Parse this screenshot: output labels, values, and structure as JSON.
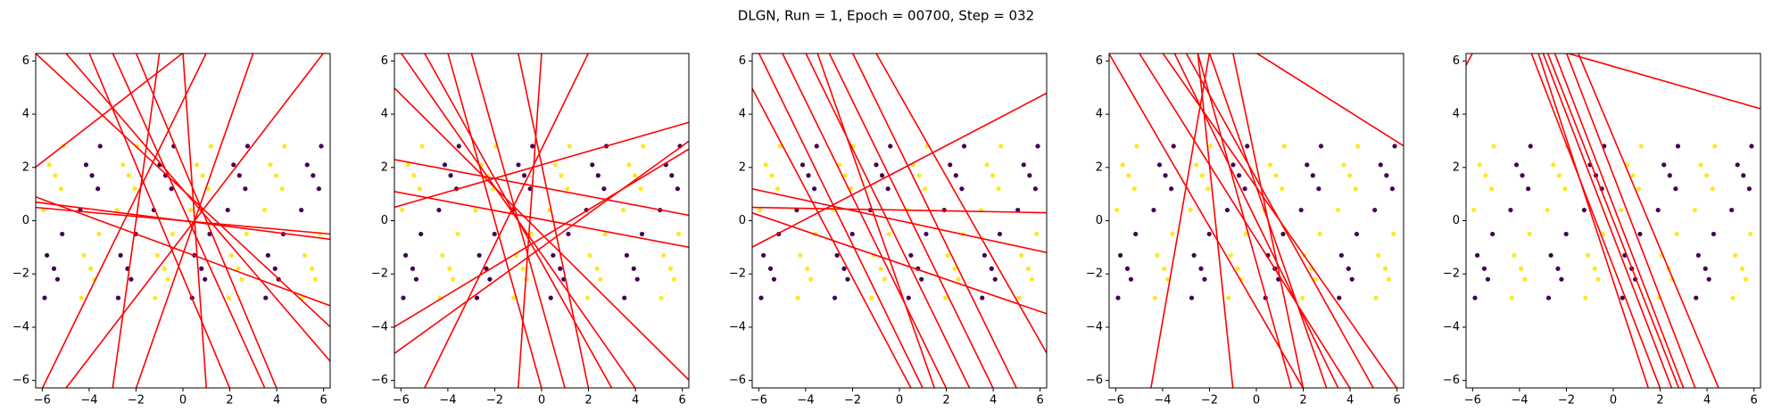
{
  "title": "DLGN, Run = 1, Epoch = 00700, Step = 032",
  "dataset": [
    {
      "color": "#fde725",
      "x": [
        -5.95,
        -5.2,
        -5.7,
        -5.1,
        -5.45,
        -2.81,
        -2.06,
        -2.56,
        -1.96,
        -2.31,
        0.34,
        1.09,
        0.59,
        1.19,
        0.84,
        3.48,
        4.23,
        3.73,
        4.33,
        3.98,
        -3.58,
        -4.23,
        -3.78,
        -4.33,
        -3.93,
        -0.44,
        -1.09,
        -0.64,
        -1.19,
        -0.79,
        2.71,
        2.06,
        2.51,
        1.96,
        2.36,
        5.85,
        5.2,
        5.65,
        5.1,
        5.5
      ],
      "y": [
        0.4,
        1.2,
        2.1,
        2.8,
        1.7,
        0.4,
        1.2,
        2.1,
        2.8,
        1.7,
        0.4,
        1.2,
        2.1,
        2.8,
        1.7,
        0.4,
        1.2,
        2.1,
        2.8,
        1.7,
        -0.5,
        -1.3,
        -2.2,
        -2.9,
        -1.8,
        -0.5,
        -1.3,
        -2.2,
        -2.9,
        -1.8,
        -0.5,
        -1.3,
        -2.2,
        -2.9,
        -1.8,
        -0.5,
        -1.3,
        -2.2,
        -2.9,
        -1.8
      ]
    },
    {
      "color": "#440154",
      "x": [
        -4.38,
        -3.63,
        -4.13,
        -3.53,
        -3.88,
        -1.24,
        -0.49,
        -0.99,
        -0.39,
        -0.74,
        1.91,
        2.66,
        2.16,
        2.76,
        2.41,
        5.05,
        5.8,
        5.3,
        5.9,
        5.55,
        -5.15,
        -5.8,
        -5.35,
        -5.9,
        -5.5,
        -2.01,
        -2.66,
        -2.21,
        -2.76,
        -2.36,
        1.14,
        0.49,
        0.94,
        0.39,
        0.79,
        4.28,
        3.63,
        4.08,
        3.53,
        3.93
      ],
      "y": [
        0.4,
        1.2,
        2.1,
        2.8,
        1.7,
        0.4,
        1.2,
        2.1,
        2.8,
        1.7,
        0.4,
        1.2,
        2.1,
        2.8,
        1.7,
        0.4,
        1.2,
        2.1,
        2.8,
        1.7,
        -0.5,
        -1.3,
        -2.2,
        -2.9,
        -1.8,
        -0.5,
        -1.3,
        -2.2,
        -2.9,
        -1.8,
        -0.5,
        -1.3,
        -2.2,
        -2.9,
        -1.8,
        -0.5,
        -1.3,
        -2.2,
        -2.9,
        -1.8
      ]
    }
  ],
  "chart_data": [
    {
      "type": "scatter",
      "line_color": "#ff0000",
      "xlim": [
        -6.28,
        6.28
      ],
      "ylim": [
        -6.28,
        6.28
      ],
      "xticks": [
        {
          "value": -6,
          "label": "−6"
        },
        {
          "value": -4,
          "label": "−4"
        },
        {
          "value": -2,
          "label": "−2"
        },
        0,
        2,
        4,
        6
      ],
      "yticks": [
        {
          "value": -6,
          "label": "−6"
        },
        {
          "value": -4,
          "label": "−4"
        },
        {
          "value": -2,
          "label": "−2"
        },
        0,
        2,
        4,
        6
      ],
      "lines": [
        {
          "x": [
            -6.3,
            6.3
          ],
          "y": [
            0.9,
            -3.2
          ]
        },
        {
          "x": [
            -6.3,
            6.3
          ],
          "y": [
            0.7,
            -0.7
          ]
        },
        {
          "x": [
            -6.3,
            6.3
          ],
          "y": [
            0.5,
            -0.5
          ]
        },
        {
          "x": [
            -6.3,
            0
          ],
          "y": [
            2,
            6.3
          ]
        },
        {
          "x": [
            -5,
            6.3
          ],
          "y": [
            6.3,
            -5.3
          ]
        },
        {
          "x": [
            -4,
            2
          ],
          "y": [
            6.3,
            -6.3
          ]
        },
        {
          "x": [
            -2,
            4
          ],
          "y": [
            6.3,
            -6.3
          ]
        },
        {
          "x": [
            -1,
            -3
          ],
          "y": [
            6.3,
            -6.3
          ]
        },
        {
          "x": [
            0,
            1
          ],
          "y": [
            6.3,
            -6.3
          ]
        },
        {
          "x": [
            3,
            -2
          ],
          "y": [
            6.3,
            -6.3
          ]
        },
        {
          "x": [
            6,
            -5
          ],
          "y": [
            6.3,
            -6.3
          ]
        },
        {
          "x": [
            -6.3,
            6.3
          ],
          "y": [
            6.3,
            -4
          ]
        },
        {
          "x": [
            1,
            -6
          ],
          "y": [
            6.3,
            -6.3
          ]
        },
        {
          "x": [
            -3,
            3.5
          ],
          "y": [
            6.3,
            -6.3
          ]
        }
      ]
    },
    {
      "type": "scatter",
      "line_color": "#ff0000",
      "xlim": [
        -6.28,
        6.28
      ],
      "ylim": [
        -6.28,
        6.28
      ],
      "xticks": [
        {
          "value": -6,
          "label": "−6"
        },
        {
          "value": -4,
          "label": "−4"
        },
        {
          "value": -2,
          "label": "−2"
        },
        0,
        2,
        4,
        6
      ],
      "yticks": [
        {
          "value": -6,
          "label": "−6"
        },
        {
          "value": -4,
          "label": "−4"
        },
        {
          "value": -2,
          "label": "−2"
        },
        0,
        2,
        4,
        6
      ],
      "lines": [
        {
          "x": [
            -6.3,
            6.3
          ],
          "y": [
            5,
            -6
          ]
        },
        {
          "x": [
            -6.3,
            6.3
          ],
          "y": [
            2.3,
            0.2
          ]
        },
        {
          "x": [
            -6.3,
            6.3
          ],
          "y": [
            1.1,
            -1
          ]
        },
        {
          "x": [
            -6.3,
            6.3
          ],
          "y": [
            -5,
            3
          ]
        },
        {
          "x": [
            -6.3,
            6.3
          ],
          "y": [
            -4,
            2.7
          ]
        },
        {
          "x": [
            -5,
            3
          ],
          "y": [
            6.3,
            -6.3
          ]
        },
        {
          "x": [
            -3,
            1
          ],
          "y": [
            6.3,
            -6.3
          ]
        },
        {
          "x": [
            -1,
            2
          ],
          "y": [
            6.3,
            -6.3
          ]
        },
        {
          "x": [
            2,
            -5
          ],
          "y": [
            6.3,
            -6.3
          ]
        },
        {
          "x": [
            0,
            -1
          ],
          "y": [
            6.3,
            -6.3
          ]
        },
        {
          "x": [
            -6,
            4
          ],
          "y": [
            6.3,
            -6.3
          ]
        },
        {
          "x": [
            -4,
            0
          ],
          "y": [
            6.3,
            -6.3
          ]
        },
        {
          "x": [
            -6.3,
            6.3
          ],
          "y": [
            0.5,
            3.7
          ]
        }
      ]
    },
    {
      "type": "scatter",
      "line_color": "#ff0000",
      "xlim": [
        -6.28,
        6.28
      ],
      "ylim": [
        -6.28,
        6.28
      ],
      "xticks": [
        {
          "value": -6,
          "label": "−6"
        },
        {
          "value": -4,
          "label": "−4"
        },
        {
          "value": -2,
          "label": "−2"
        },
        0,
        2,
        4,
        6
      ],
      "yticks": [
        {
          "value": -6,
          "label": "−6"
        },
        {
          "value": -4,
          "label": "−4"
        },
        {
          "value": -2,
          "label": "−2"
        },
        0,
        2,
        4,
        6
      ],
      "lines": [
        {
          "x": [
            -6.3,
            6.3
          ],
          "y": [
            0.5,
            0.3
          ]
        },
        {
          "x": [
            -6.3,
            6.3
          ],
          "y": [
            -1,
            4.8
          ]
        },
        {
          "x": [
            -6.3,
            6.3
          ],
          "y": [
            1.2,
            -1.2
          ]
        },
        {
          "x": [
            -6,
            1
          ],
          "y": [
            6.3,
            -6.3
          ]
        },
        {
          "x": [
            -5,
            2
          ],
          "y": [
            6.3,
            -6.3
          ]
        },
        {
          "x": [
            -4,
            3
          ],
          "y": [
            6.3,
            -6.3
          ]
        },
        {
          "x": [
            -3,
            4
          ],
          "y": [
            6.3,
            -6.3
          ]
        },
        {
          "x": [
            -2,
            5
          ],
          "y": [
            6.3,
            -6.3
          ]
        },
        {
          "x": [
            -1,
            6.3
          ],
          "y": [
            6.3,
            -5
          ]
        },
        {
          "x": [
            -6.3,
            0.5
          ],
          "y": [
            5,
            -6.3
          ]
        },
        {
          "x": [
            -3.5,
            1.5
          ],
          "y": [
            6.3,
            -6.3
          ]
        },
        {
          "x": [
            -6.3,
            6.3
          ],
          "y": [
            0.3,
            -3.5
          ]
        }
      ]
    },
    {
      "type": "scatter",
      "line_color": "#ff0000",
      "xlim": [
        -6.28,
        6.28
      ],
      "ylim": [
        -6.28,
        6.28
      ],
      "xticks": [
        {
          "value": -6,
          "label": "−6"
        },
        {
          "value": -4,
          "label": "−4"
        },
        {
          "value": -2,
          "label": "−2"
        },
        0,
        2,
        4,
        6
      ],
      "yticks": [
        {
          "value": -6,
          "label": "−6"
        },
        {
          "value": -4,
          "label": "−4"
        },
        {
          "value": -2,
          "label": "−2"
        },
        0,
        2,
        4,
        6
      ],
      "lines": [
        {
          "x": [
            0,
            6.3
          ],
          "y": [
            6.3,
            2.8
          ]
        },
        {
          "x": [
            -5,
            4
          ],
          "y": [
            6.3,
            -6.3
          ]
        },
        {
          "x": [
            -3,
            5
          ],
          "y": [
            6.3,
            -6.3
          ]
        },
        {
          "x": [
            -2,
            3
          ],
          "y": [
            6.3,
            -6.3
          ]
        },
        {
          "x": [
            -1,
            2
          ],
          "y": [
            6.3,
            -6.3
          ]
        },
        {
          "x": [
            -4,
            6
          ],
          "y": [
            6.3,
            -6.3
          ]
        },
        {
          "x": [
            -2.5,
            1.5
          ],
          "y": [
            6.3,
            -6.3
          ]
        },
        {
          "x": [
            -3.5,
            3.5
          ],
          "y": [
            6.3,
            -6.3
          ]
        },
        {
          "x": [
            -4.5,
            -2
          ],
          "y": [
            -6.3,
            6.3
          ]
        },
        {
          "x": [
            -1,
            -2.5
          ],
          "y": [
            -6.3,
            6.3
          ]
        },
        {
          "x": [
            -6.3,
            2
          ],
          "y": [
            6.3,
            -6.3
          ]
        }
      ]
    },
    {
      "type": "scatter",
      "line_color": "#ff0000",
      "xlim": [
        -6.28,
        6.28
      ],
      "ylim": [
        -6.28,
        6.28
      ],
      "xticks": [
        {
          "value": -6,
          "label": "−6"
        },
        {
          "value": -4,
          "label": "−4"
        },
        {
          "value": -2,
          "label": "−2"
        },
        0,
        2,
        4,
        6
      ],
      "yticks": [
        {
          "value": -6,
          "label": "−6"
        },
        {
          "value": -4,
          "label": "−4"
        },
        {
          "value": -2,
          "label": "−2"
        },
        0,
        2,
        4,
        6
      ],
      "lines": [
        {
          "x": [
            -2,
            6.3
          ],
          "y": [
            6.3,
            4.2
          ]
        },
        {
          "x": [
            -6.3,
            -6
          ],
          "y": [
            5.8,
            6.3
          ]
        },
        {
          "x": [
            -3.5,
            2
          ],
          "y": [
            6.3,
            -6.3
          ]
        },
        {
          "x": [
            -3,
            2.5
          ],
          "y": [
            6.3,
            -6.3
          ]
        },
        {
          "x": [
            -2.5,
            3
          ],
          "y": [
            6.3,
            -6.3
          ]
        },
        {
          "x": [
            -2,
            3.5
          ],
          "y": [
            6.3,
            -6.3
          ]
        },
        {
          "x": [
            -1.5,
            4.5
          ],
          "y": [
            6.3,
            -6.3
          ]
        },
        {
          "x": [
            -3.2,
            1.5
          ],
          "y": [
            6.3,
            -6.3
          ]
        },
        {
          "x": [
            -2.8,
            2.8
          ],
          "y": [
            6.3,
            -6.3
          ]
        }
      ]
    }
  ]
}
